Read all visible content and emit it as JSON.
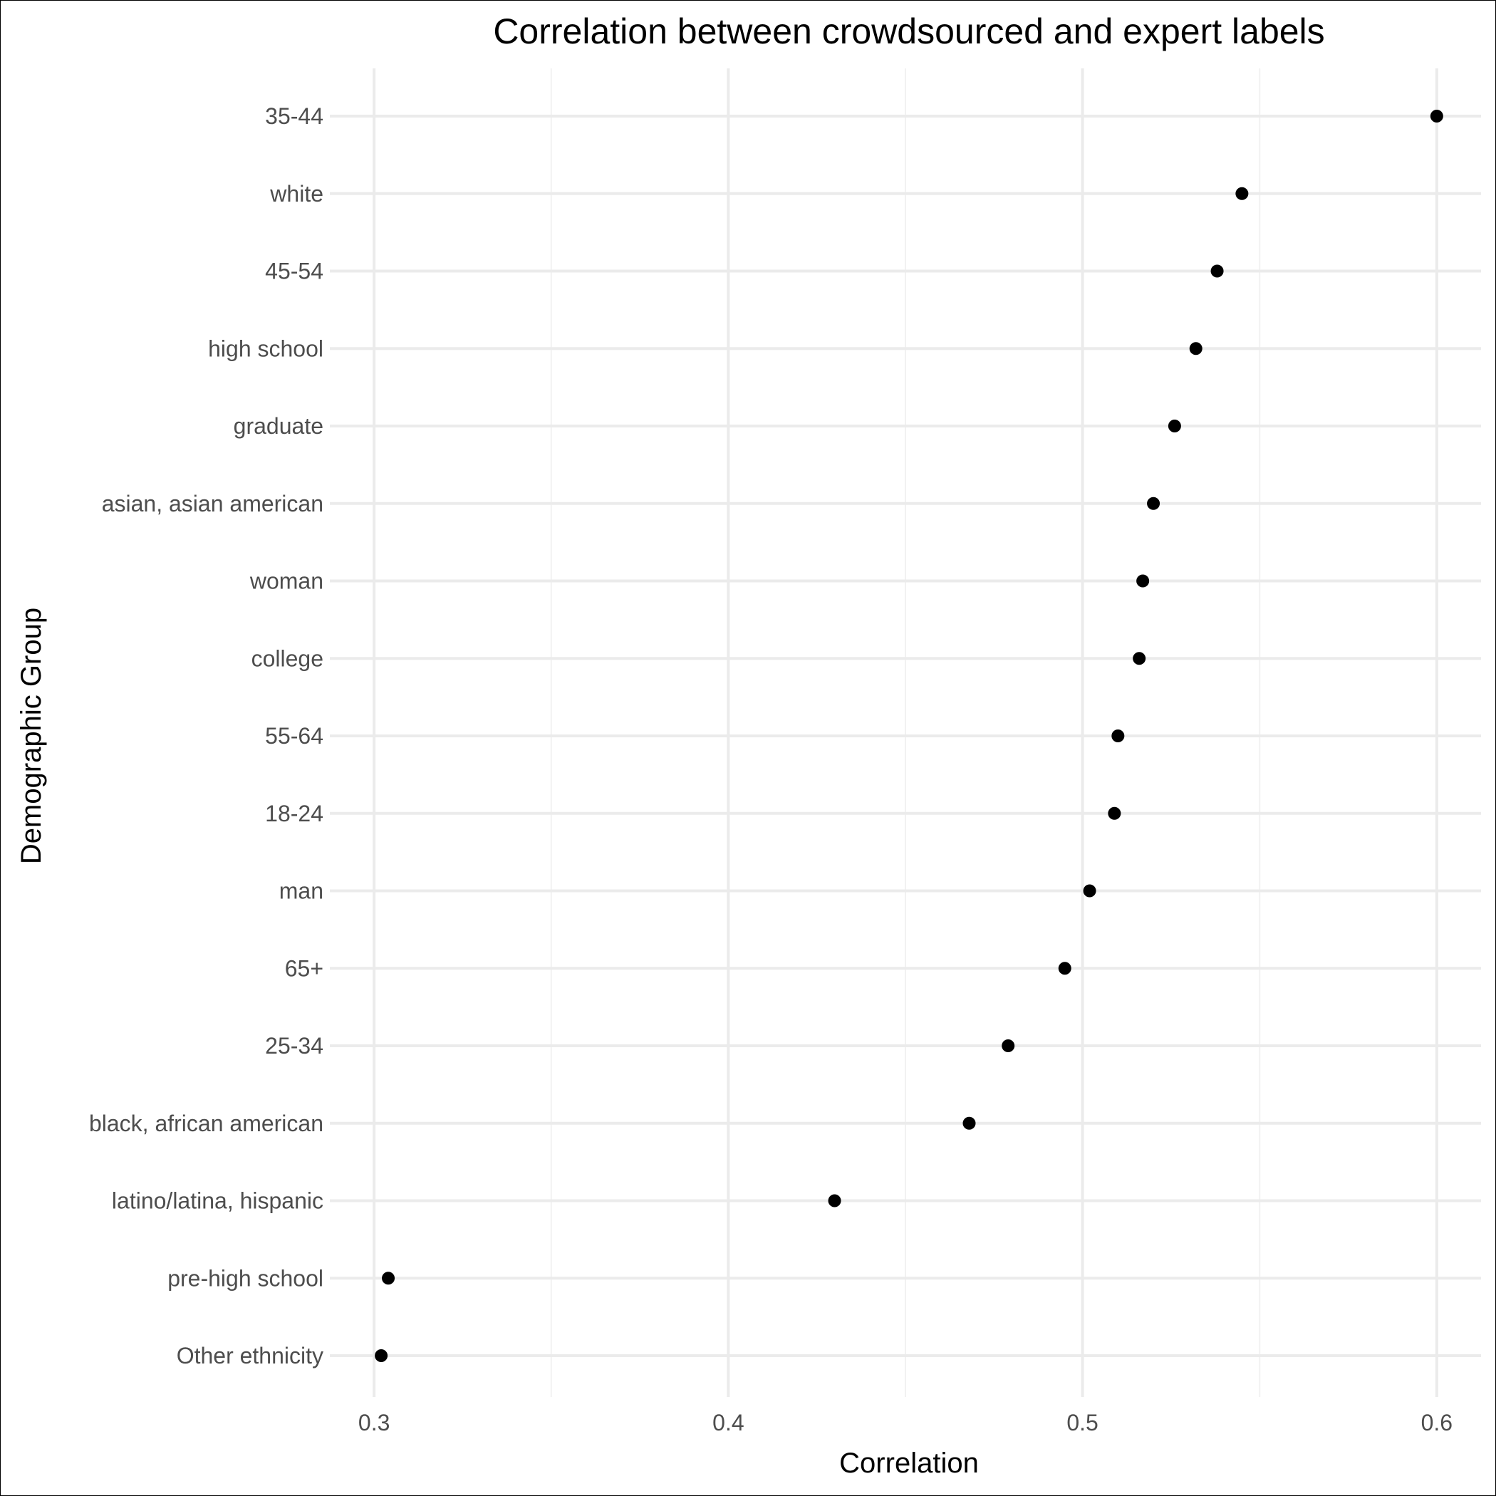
{
  "chart_data": {
    "type": "scatter",
    "title": "Correlation between crowdsourced and expert labels",
    "xlabel": "Correlation",
    "ylabel": "Demographic Group",
    "xlim": [
      0.2875,
      0.6125
    ],
    "x_ticks": [
      "0.3",
      "0.4",
      "0.5",
      "0.6"
    ],
    "x_tick_values": [
      0.3,
      0.4,
      0.5,
      0.6
    ],
    "x_minor_values": [
      0.35,
      0.45,
      0.55
    ],
    "grid": true,
    "categories": [
      "35-44",
      "white",
      "45-54",
      "high school",
      "graduate",
      "asian, asian american",
      "woman",
      "college",
      "55-64",
      "18-24",
      "man",
      "65+",
      "25-34",
      "black, african american",
      "latino/latina, hispanic",
      "pre-high school",
      "Other ethnicity"
    ],
    "values": [
      0.6,
      0.545,
      0.538,
      0.532,
      0.526,
      0.52,
      0.517,
      0.516,
      0.51,
      0.509,
      0.502,
      0.495,
      0.479,
      0.468,
      0.43,
      0.304,
      0.302
    ]
  }
}
